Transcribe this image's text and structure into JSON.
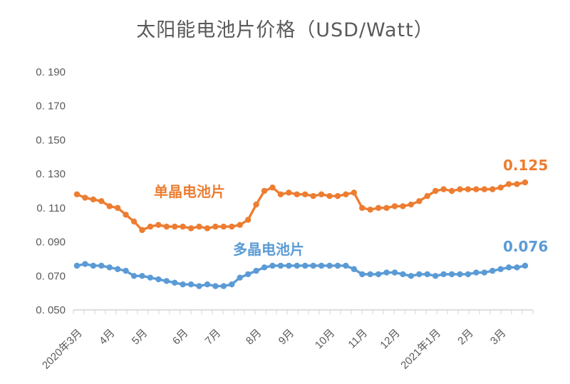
{
  "chart_data": {
    "type": "line",
    "title": "太阳能电池片价格（USD/Watt）",
    "xlabel": "",
    "ylabel": "",
    "ylim": [
      0.05,
      0.19
    ],
    "grid": false,
    "legend_position": "inline-labels-on-chart",
    "marker": "circle",
    "yticks": [
      {
        "value": 0.19,
        "label": "0. 190"
      },
      {
        "value": 0.17,
        "label": "0. 170"
      },
      {
        "value": 0.15,
        "label": "0. 150"
      },
      {
        "value": 0.13,
        "label": "0. 130"
      },
      {
        "value": 0.11,
        "label": "0. 110"
      },
      {
        "value": 0.09,
        "label": "0. 090"
      },
      {
        "value": 0.07,
        "label": "0. 070"
      },
      {
        "value": 0.05,
        "label": "0. 050"
      }
    ],
    "x_months": [
      {
        "label": "2020年3月",
        "index": 0
      },
      {
        "label": "4月",
        "index": 4
      },
      {
        "label": "5月",
        "index": 8
      },
      {
        "label": "6月",
        "index": 13
      },
      {
        "label": "7月",
        "index": 17
      },
      {
        "label": "8月",
        "index": 22
      },
      {
        "label": "9月",
        "index": 26
      },
      {
        "label": "10月",
        "index": 31
      },
      {
        "label": "11月",
        "index": 35
      },
      {
        "label": "12月",
        "index": 39
      },
      {
        "label": "2021年1月",
        "index": 44
      },
      {
        "label": "2月",
        "index": 48
      },
      {
        "label": "3月",
        "index": 52
      }
    ],
    "series": [
      {
        "name": "单晶电池片",
        "color": "#ED7D31",
        "end_label": "0.125",
        "values": [
          0.118,
          0.116,
          0.115,
          0.114,
          0.111,
          0.11,
          0.106,
          0.102,
          0.097,
          0.099,
          0.1,
          0.099,
          0.099,
          0.099,
          0.098,
          0.099,
          0.098,
          0.099,
          0.099,
          0.099,
          0.1,
          0.103,
          0.112,
          0.12,
          0.122,
          0.118,
          0.119,
          0.118,
          0.118,
          0.117,
          0.118,
          0.117,
          0.117,
          0.118,
          0.119,
          0.11,
          0.109,
          0.11,
          0.11,
          0.111,
          0.111,
          0.112,
          0.114,
          0.117,
          0.12,
          0.121,
          0.12,
          0.121,
          0.121,
          0.121,
          0.121,
          0.121,
          0.122,
          0.124,
          0.124,
          0.125
        ]
      },
      {
        "name": "多晶电池片",
        "color": "#5B9BD5",
        "end_label": "0.076",
        "values": [
          0.076,
          0.077,
          0.076,
          0.076,
          0.075,
          0.074,
          0.073,
          0.07,
          0.07,
          0.069,
          0.068,
          0.067,
          0.066,
          0.065,
          0.065,
          0.064,
          0.065,
          0.064,
          0.064,
          0.065,
          0.069,
          0.071,
          0.073,
          0.075,
          0.076,
          0.076,
          0.076,
          0.076,
          0.076,
          0.076,
          0.076,
          0.076,
          0.076,
          0.076,
          0.074,
          0.071,
          0.071,
          0.071,
          0.072,
          0.072,
          0.071,
          0.07,
          0.071,
          0.071,
          0.07,
          0.071,
          0.071,
          0.071,
          0.071,
          0.072,
          0.072,
          0.073,
          0.074,
          0.075,
          0.075,
          0.076
        ]
      }
    ]
  },
  "colors": {
    "background": "#FFFFFF",
    "title_text": "#595959",
    "axis_text": "#595959",
    "axis_line": "#D9D9D9",
    "mono_series": "#ED7D31",
    "poly_series": "#5B9BD5"
  }
}
